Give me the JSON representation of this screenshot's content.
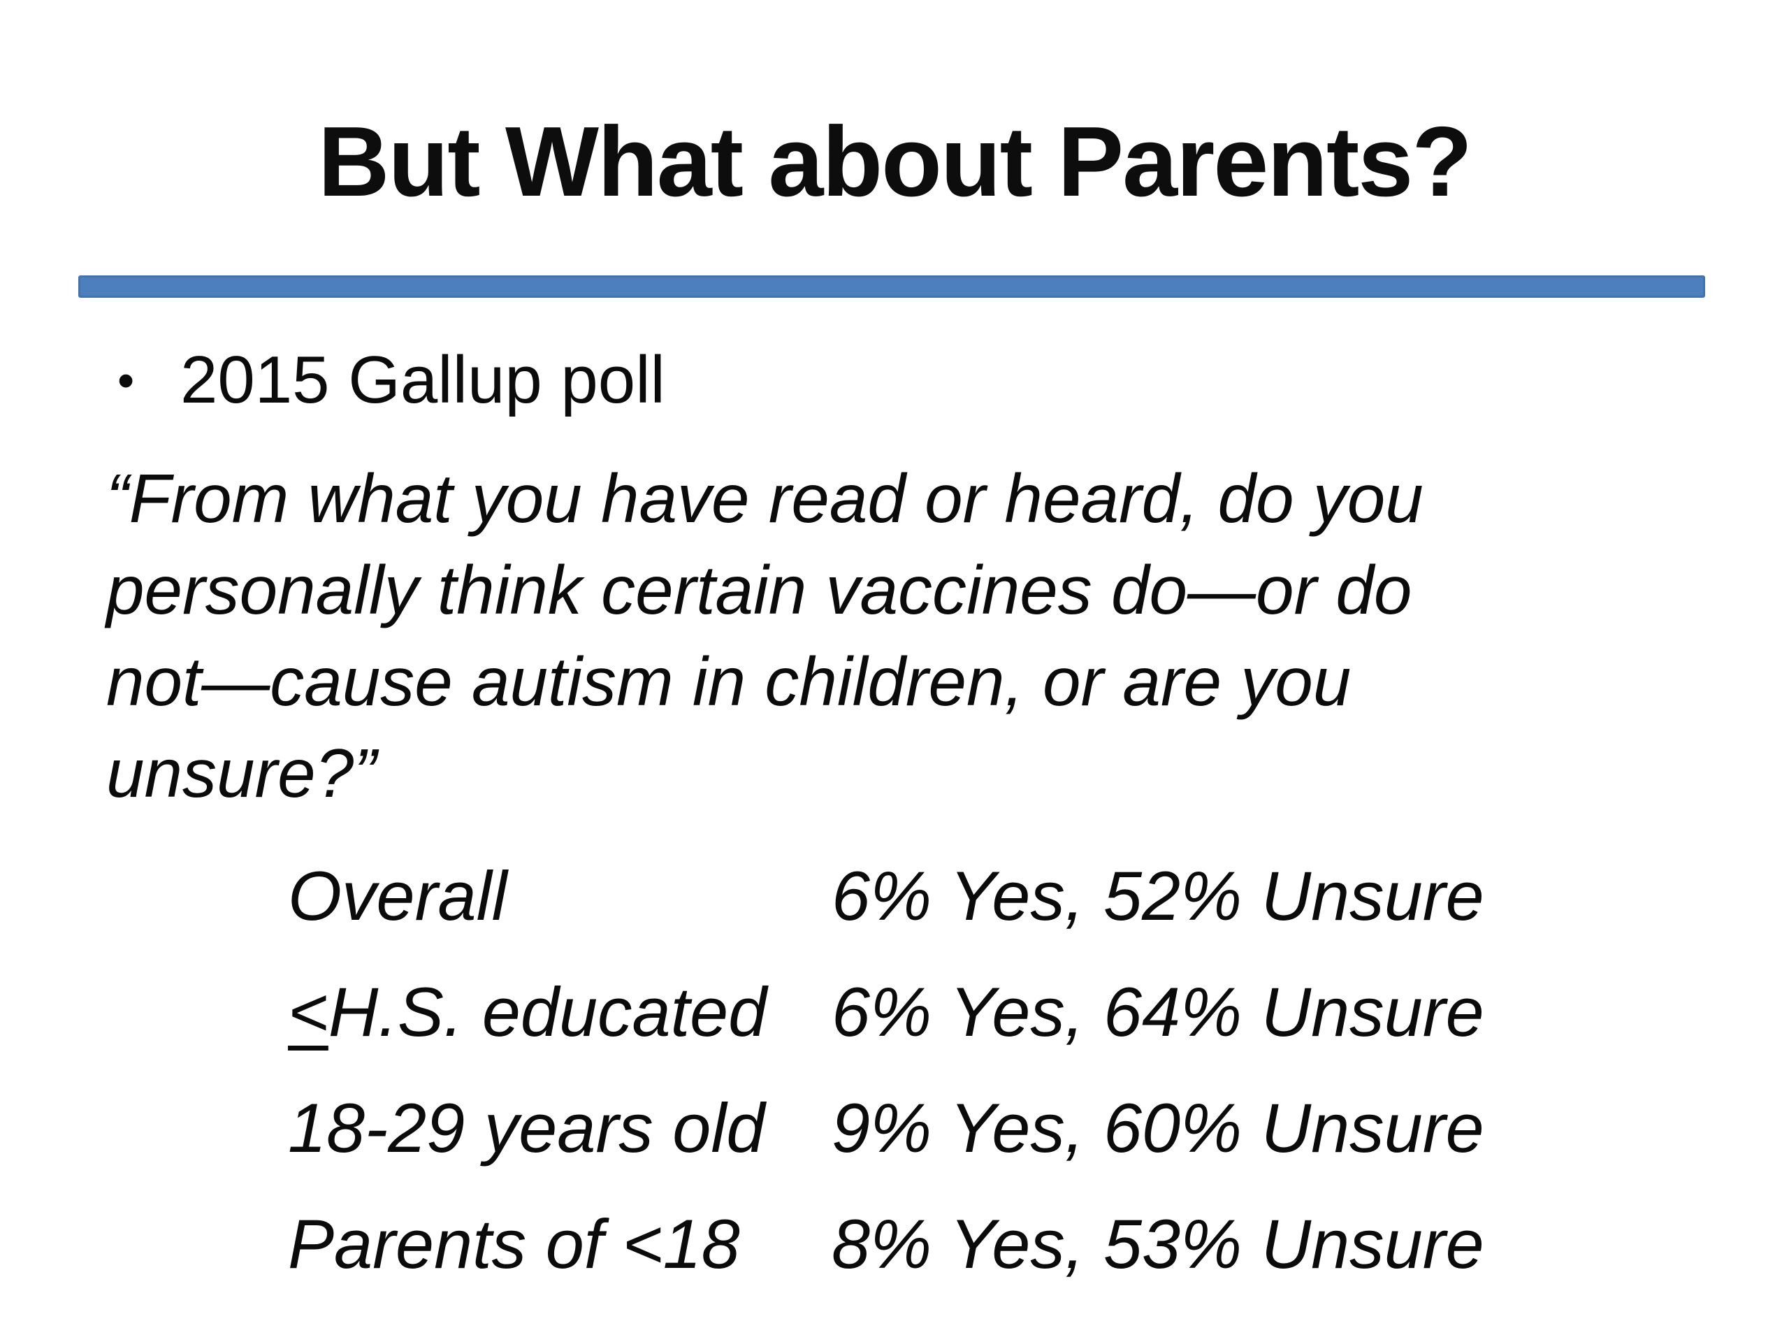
{
  "slide": {
    "title": "But What about Parents?",
    "accent_color": "#4d7ebd",
    "text_color": "#0b0b0b",
    "bullet_glyph": "•",
    "bullet": "2015 Gallup poll",
    "quote_lines": [
      "“From what you have read or heard, do you",
      "personally think certain vaccines do—or do",
      "not—cause autism in children, or are you",
      "unsure?”"
    ],
    "poll": {
      "rows": [
        {
          "prefix": "",
          "label": "Overall",
          "value": "6% Yes, 52% Unsure"
        },
        {
          "prefix": "<",
          "label": "H.S. educated",
          "value": "6% Yes, 64% Unsure"
        },
        {
          "prefix": "",
          "label": "18-29 years old",
          "value": "9% Yes, 60% Unsure"
        },
        {
          "prefix": "",
          "label": "Parents of <18",
          "value": "8% Yes, 53% Unsure"
        }
      ]
    }
  }
}
